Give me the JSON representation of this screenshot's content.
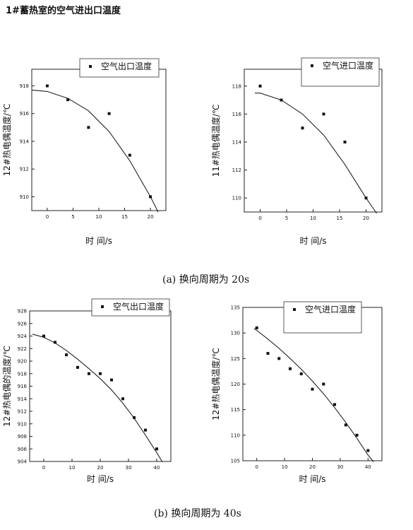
{
  "title": "1#蓄热室的空气进出口温度",
  "captions": {
    "a": "(a)   换向周期为 20s",
    "b": "(b)  换向周期为 40s"
  },
  "chart_data": [
    {
      "type": "scatter",
      "xlabel": "时 间/s",
      "ylabel": "12#热电偶温度/℃",
      "xlim": [
        -3,
        23
      ],
      "ylim": [
        909,
        919.2
      ],
      "xticks": [
        0,
        5,
        10,
        15,
        20
      ],
      "yticks": [
        910,
        912,
        914,
        916,
        918
      ],
      "series": [
        {
          "name": "空气出口温度",
          "x": [
            0,
            4,
            8,
            12,
            16,
            20
          ],
          "y": [
            918,
            917,
            915,
            916,
            913,
            910
          ],
          "fit": [
            [
              -3,
              917.7
            ],
            [
              0,
              917.6
            ],
            [
              4,
              917.1
            ],
            [
              8,
              916.2
            ],
            [
              12,
              914.7
            ],
            [
              16,
              912.6
            ],
            [
              20,
              910.0
            ],
            [
              21.5,
              908.9
            ]
          ]
        }
      ]
    },
    {
      "type": "scatter",
      "xlabel": "时 间/s",
      "ylabel": "11#热电偶温度/℃",
      "xlim": [
        -3,
        23
      ],
      "ylim": [
        109,
        119.2
      ],
      "xticks": [
        0,
        5,
        10,
        15,
        20
      ],
      "yticks": [
        110,
        112,
        114,
        116,
        118
      ],
      "series": [
        {
          "name": "空气进口温度",
          "x": [
            0,
            4,
            8,
            12,
            16,
            20
          ],
          "y": [
            118,
            117,
            115,
            116,
            114,
            110
          ],
          "fit": [
            [
              -1,
              117.5
            ],
            [
              0,
              117.5
            ],
            [
              4,
              117.0
            ],
            [
              8,
              116.0
            ],
            [
              12,
              114.5
            ],
            [
              16,
              112.4
            ],
            [
              20,
              110.0
            ],
            [
              22,
              108.9
            ]
          ]
        }
      ]
    },
    {
      "type": "scatter",
      "xlabel": "时 间/s",
      "ylabel": "12#热电偶的温度/℃",
      "xlim": [
        -5,
        45
      ],
      "ylim": [
        904,
        928
      ],
      "xticks": [
        0,
        10,
        20,
        30,
        40
      ],
      "yticks": [
        904,
        906,
        908,
        910,
        912,
        914,
        916,
        918,
        920,
        922,
        924,
        926,
        928
      ],
      "series": [
        {
          "name": "空气出口温度",
          "x": [
            0,
            4,
            8,
            12,
            16,
            20,
            24,
            28,
            32,
            36,
            40
          ],
          "y": [
            924,
            923,
            921,
            919,
            918,
            918,
            917,
            914,
            911,
            909,
            906
          ],
          "fit": [
            [
              -4,
              924.3
            ],
            [
              0,
              923.8
            ],
            [
              4,
              922.9
            ],
            [
              8,
              921.7
            ],
            [
              12,
              920.3
            ],
            [
              16,
              918.8
            ],
            [
              20,
              917.2
            ],
            [
              24,
              915.4
            ],
            [
              28,
              913.3
            ],
            [
              32,
              910.9
            ],
            [
              36,
              908.2
            ],
            [
              40,
              905.4
            ],
            [
              42,
              903.9
            ]
          ]
        }
      ]
    },
    {
      "type": "scatter",
      "xlabel": "时 间/s",
      "ylabel": "12#热电偶温度/℃",
      "xlim": [
        -5,
        45
      ],
      "ylim": [
        105,
        135
      ],
      "xticks": [
        0,
        10,
        20,
        30,
        40
      ],
      "yticks": [
        105,
        110,
        115,
        120,
        125,
        130,
        135
      ],
      "series": [
        {
          "name": "空气进口温度",
          "x": [
            0,
            4,
            8,
            12,
            16,
            20,
            24,
            28,
            32,
            36,
            40
          ],
          "y": [
            131,
            126,
            125,
            123,
            122,
            119,
            120,
            116,
            112,
            110,
            107
          ],
          "fit": [
            [
              -1,
              130.9
            ],
            [
              0,
              130.5
            ],
            [
              4,
              128.8
            ],
            [
              8,
              127.0
            ],
            [
              12,
              125.0
            ],
            [
              16,
              122.9
            ],
            [
              20,
              120.6
            ],
            [
              24,
              118.1
            ],
            [
              28,
              115.4
            ],
            [
              32,
              112.5
            ],
            [
              36,
              109.4
            ],
            [
              40,
              106.1
            ],
            [
              42,
              104.8
            ]
          ]
        }
      ]
    }
  ]
}
